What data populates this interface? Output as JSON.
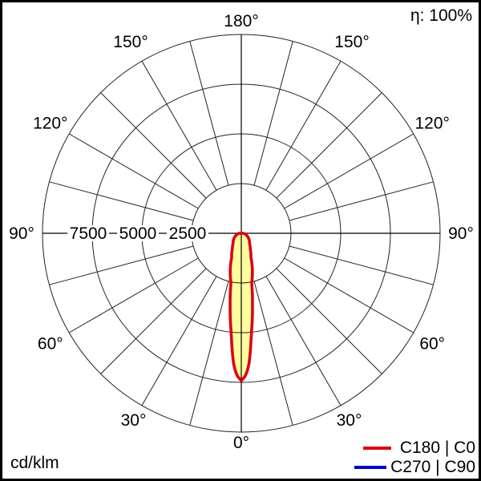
{
  "header": {
    "eta_label": "η: 100%"
  },
  "footer": {
    "unit_label": "cd/klm"
  },
  "legend": {
    "items": [
      {
        "label": "C180 | C0",
        "color": "#dc0014"
      },
      {
        "label": "C270 | C90",
        "color": "#0000cd"
      }
    ]
  },
  "chart_data": {
    "type": "polar",
    "subtype": "luminous-intensity-distribution",
    "unit": "cd/klm",
    "efficiency": "100%",
    "rmax": 10000,
    "radial_rings": [
      2500,
      5000,
      7500,
      10000
    ],
    "radial_ring_labels": [
      "7500",
      "5000",
      "2500"
    ],
    "angle_step_deg": 15,
    "angle_labels": [
      {
        "deg": 0,
        "text": "0°"
      },
      {
        "deg": 30,
        "text": "30°"
      },
      {
        "deg": 60,
        "text": "60°"
      },
      {
        "deg": 90,
        "text": "90°"
      },
      {
        "deg": 120,
        "text": "120°"
      },
      {
        "deg": 150,
        "text": "150°"
      },
      {
        "deg": 180,
        "text": "180°"
      }
    ],
    "series": [
      {
        "name": "C180 | C0",
        "color": "#dc0014",
        "fill": "#ffffa0",
        "points_unit": "[angle deg from 0° (down), intensity cd/klm]",
        "points": [
          [
            0,
            7420
          ],
          [
            1.6,
            7180
          ],
          [
            2.7,
            6860
          ],
          [
            3.6,
            6460
          ],
          [
            4.2,
            6060
          ],
          [
            5.8,
            5030
          ],
          [
            8.8,
            3670
          ],
          [
            11.8,
            2550
          ],
          [
            21.8,
            1300
          ],
          [
            30,
            900
          ],
          [
            38,
            680
          ],
          [
            48,
            540
          ],
          [
            65,
            330
          ],
          [
            78,
            200
          ],
          [
            90,
            100
          ]
        ]
      },
      {
        "name": "C270 | C90",
        "color": "#0000cd",
        "points_unit": "[angle deg from 0° (down), intensity cd/klm]",
        "points": [
          [
            0,
            7420
          ],
          [
            1.6,
            7180
          ],
          [
            2.7,
            6860
          ],
          [
            3.6,
            6460
          ],
          [
            4.2,
            6060
          ],
          [
            5.8,
            5030
          ],
          [
            8.8,
            3670
          ],
          [
            11.8,
            2550
          ],
          [
            21.8,
            1300
          ],
          [
            30,
            900
          ],
          [
            38,
            680
          ],
          [
            48,
            540
          ],
          [
            65,
            330
          ],
          [
            78,
            200
          ],
          [
            90,
            100
          ]
        ]
      }
    ]
  }
}
